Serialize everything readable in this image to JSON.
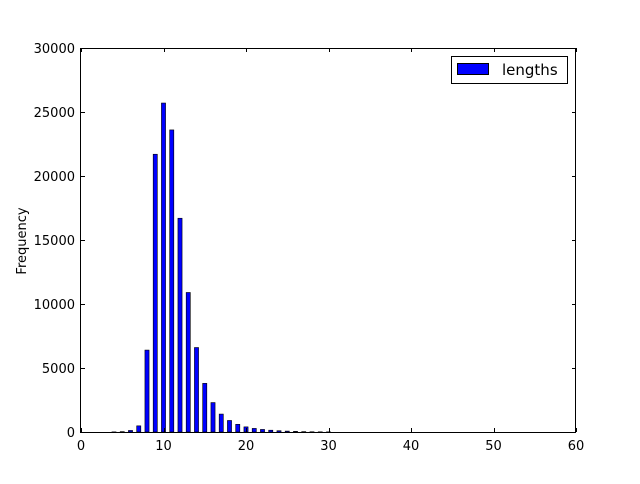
{
  "chart_data": {
    "type": "bar",
    "title": "",
    "xlabel": "",
    "ylabel": "Frequency",
    "xlim": [
      0,
      60
    ],
    "ylim": [
      0,
      30000
    ],
    "xticks": [
      0,
      10,
      20,
      30,
      40,
      50,
      60
    ],
    "yticks": [
      0,
      5000,
      10000,
      15000,
      20000,
      25000,
      30000
    ],
    "grid": false,
    "legend_position": "top-right",
    "series": [
      {
        "name": "lengths",
        "color": "#0000ff",
        "x": [
          4,
          5,
          6,
          7,
          8,
          9,
          10,
          11,
          12,
          13,
          14,
          15,
          16,
          17,
          18,
          19,
          20,
          21,
          22,
          23,
          24,
          25,
          26,
          27,
          28,
          29,
          30
        ],
        "values": [
          10,
          30,
          120,
          480,
          6400,
          21700,
          25700,
          23600,
          16700,
          10900,
          6600,
          3800,
          2300,
          1400,
          900,
          600,
          400,
          280,
          200,
          140,
          100,
          70,
          50,
          30,
          20,
          15,
          10
        ]
      }
    ]
  }
}
